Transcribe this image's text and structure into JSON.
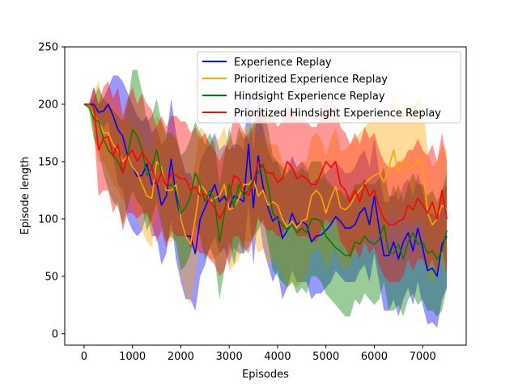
{
  "chart_data": {
    "type": "line",
    "title": "",
    "xlabel": "Episodes",
    "ylabel": "Episode length",
    "xlim": [
      -400,
      7900
    ],
    "ylim": [
      -10,
      250
    ],
    "xticks": [
      0,
      1000,
      2000,
      3000,
      4000,
      5000,
      6000,
      7000
    ],
    "yticks": [
      0,
      50,
      100,
      150,
      200,
      250
    ],
    "grid": false,
    "legend_position": "top-right",
    "x": [
      0,
      100,
      200,
      300,
      400,
      500,
      600,
      700,
      800,
      900,
      1000,
      1100,
      1200,
      1300,
      1400,
      1500,
      1600,
      1700,
      1800,
      1900,
      2000,
      2100,
      2200,
      2300,
      2400,
      2500,
      2600,
      2700,
      2800,
      2900,
      3000,
      3100,
      3200,
      3300,
      3400,
      3500,
      3600,
      3700,
      3800,
      3900,
      4000,
      4100,
      4200,
      4300,
      4400,
      4500,
      4600,
      4700,
      4800,
      4900,
      5000,
      5100,
      5200,
      5300,
      5400,
      5500,
      5600,
      5700,
      5800,
      5900,
      6000,
      6100,
      6200,
      6300,
      6400,
      6500,
      6600,
      6700,
      6800,
      6900,
      7000,
      7100,
      7200,
      7300,
      7400,
      7500
    ],
    "series": [
      {
        "name": "Experience Replay",
        "color": "#0000ff",
        "values": [
          200,
          200,
          200,
          193,
          194,
          200,
          190,
          178,
          172,
          155,
          145,
          137,
          138,
          148,
          130,
          132,
          112,
          120,
          152,
          120,
          100,
          85,
          85,
          70,
          100,
          110,
          120,
          130,
          115,
          120,
          110,
          120,
          118,
          115,
          165,
          110,
          155,
          128,
          110,
          98,
          102,
          83,
          90,
          105,
          95,
          98,
          95,
          80,
          85,
          86,
          90,
          95,
          102,
          98,
          92,
          92,
          95,
          105,
          110,
          95,
          120,
          92,
          68,
          68,
          80,
          65,
          80,
          88,
          72,
          92,
          75,
          55,
          57,
          50,
          78,
          85
        ],
        "upper": [
          200,
          200,
          215,
          200,
          205,
          215,
          225,
          225,
          220,
          210,
          200,
          190,
          185,
          190,
          175,
          180,
          165,
          170,
          205,
          175,
          155,
          140,
          140,
          125,
          150,
          160,
          165,
          175,
          160,
          165,
          160,
          165,
          165,
          160,
          215,
          160,
          205,
          180,
          160,
          150,
          150,
          135,
          140,
          155,
          145,
          150,
          145,
          130,
          135,
          135,
          140,
          145,
          150,
          145,
          140,
          140,
          145,
          155,
          160,
          145,
          170,
          140,
          115,
          115,
          130,
          115,
          130,
          135,
          120,
          140,
          125,
          105,
          105,
          100,
          125,
          130
        ],
        "lower": [
          200,
          200,
          185,
          185,
          180,
          185,
          155,
          130,
          125,
          100,
          90,
          85,
          90,
          105,
          85,
          85,
          60,
          70,
          100,
          65,
          45,
          30,
          30,
          20,
          50,
          60,
          75,
          85,
          70,
          75,
          60,
          75,
          70,
          70,
          115,
          60,
          105,
          75,
          60,
          45,
          55,
          30,
          40,
          55,
          45,
          45,
          45,
          30,
          35,
          35,
          40,
          45,
          55,
          50,
          45,
          45,
          45,
          55,
          60,
          45,
          70,
          45,
          20,
          20,
          30,
          15,
          30,
          40,
          25,
          45,
          25,
          8,
          10,
          5,
          30,
          40
        ]
      },
      {
        "name": "Prioritized Experience Replay",
        "color": "#ffa500",
        "values": [
          200,
          200,
          190,
          185,
          175,
          175,
          165,
          160,
          150,
          155,
          145,
          140,
          130,
          120,
          118,
          150,
          145,
          125,
          125,
          130,
          100,
          85,
          78,
          100,
          130,
          125,
          115,
          118,
          120,
          130,
          108,
          110,
          118,
          130,
          130,
          135,
          120,
          125,
          112,
          115,
          112,
          100,
          93,
          98,
          92,
          98,
          100,
          120,
          125,
          120,
          105,
          118,
          128,
          110,
          108,
          112,
          120,
          125,
          130,
          135,
          138,
          140,
          132,
          145,
          160,
          140,
          152,
          148,
          145,
          152,
          148,
          105,
          95,
          100,
          112,
          108
        ],
        "upper": [
          200,
          200,
          210,
          220,
          200,
          210,
          200,
          195,
          185,
          190,
          180,
          180,
          170,
          160,
          160,
          190,
          185,
          170,
          170,
          175,
          150,
          135,
          130,
          150,
          180,
          175,
          165,
          170,
          170,
          180,
          160,
          160,
          170,
          180,
          180,
          185,
          170,
          175,
          165,
          165,
          165,
          150,
          145,
          150,
          145,
          150,
          150,
          170,
          175,
          170,
          155,
          170,
          180,
          160,
          160,
          165,
          170,
          175,
          180,
          185,
          190,
          190,
          185,
          195,
          210,
          190,
          200,
          200,
          195,
          205,
          200,
          160,
          145,
          150,
          165,
          160
        ],
        "lower": [
          200,
          200,
          170,
          150,
          150,
          140,
          130,
          125,
          115,
          120,
          110,
          100,
          90,
          80,
          75,
          110,
          105,
          80,
          80,
          85,
          50,
          35,
          25,
          50,
          80,
          75,
          65,
          65,
          70,
          80,
          55,
          60,
          65,
          80,
          80,
          85,
          70,
          75,
          60,
          65,
          60,
          50,
          40,
          45,
          40,
          45,
          50,
          70,
          75,
          70,
          55,
          65,
          75,
          60,
          55,
          60,
          70,
          75,
          80,
          85,
          85,
          90,
          80,
          95,
          110,
          90,
          105,
          95,
          95,
          100,
          95,
          50,
          45,
          50,
          60,
          55
        ]
      },
      {
        "name": "Hindsight Experience Replay",
        "color": "#008000",
        "values": [
          200,
          198,
          188,
          185,
          170,
          160,
          155,
          150,
          140,
          155,
          178,
          172,
          160,
          138,
          145,
          160,
          140,
          128,
          130,
          125,
          105,
          110,
          120,
          140,
          130,
          115,
          125,
          115,
          80,
          105,
          130,
          110,
          130,
          120,
          125,
          135,
          140,
          148,
          130,
          105,
          100,
          95,
          90,
          95,
          88,
          92,
          88,
          100,
          100,
          98,
          85,
          80,
          75,
          72,
          68,
          68,
          80,
          78,
          85,
          80,
          78,
          82,
          95,
          70,
          70,
          78,
          65,
          80,
          88,
          78,
          80,
          70,
          72,
          65,
          72,
          90
        ],
        "upper": [
          200,
          200,
          205,
          215,
          205,
          200,
          195,
          190,
          185,
          200,
          230,
          230,
          210,
          185,
          190,
          205,
          185,
          175,
          175,
          170,
          155,
          160,
          170,
          185,
          175,
          165,
          175,
          165,
          130,
          155,
          180,
          160,
          180,
          170,
          175,
          185,
          190,
          195,
          180,
          155,
          150,
          145,
          140,
          145,
          140,
          145,
          140,
          150,
          150,
          150,
          135,
          130,
          125,
          125,
          120,
          120,
          130,
          130,
          135,
          130,
          130,
          135,
          145,
          120,
          120,
          130,
          115,
          130,
          140,
          130,
          130,
          120,
          125,
          115,
          125,
          140
        ],
        "lower": [
          200,
          195,
          170,
          160,
          140,
          125,
          115,
          110,
          95,
          110,
          125,
          115,
          110,
          90,
          100,
          115,
          95,
          80,
          85,
          80,
          55,
          60,
          70,
          95,
          85,
          65,
          75,
          65,
          30,
          55,
          80,
          60,
          80,
          70,
          75,
          85,
          90,
          100,
          80,
          55,
          50,
          45,
          40,
          45,
          35,
          40,
          35,
          50,
          50,
          45,
          35,
          30,
          25,
          20,
          15,
          15,
          30,
          25,
          35,
          30,
          25,
          30,
          45,
          20,
          20,
          25,
          15,
          30,
          35,
          25,
          30,
          20,
          20,
          15,
          20,
          40
        ]
      },
      {
        "name": "Prioritized Hindsight Experience Replay",
        "color": "#ff0000",
        "values": [
          200,
          200,
          198,
          160,
          170,
          172,
          155,
          165,
          140,
          155,
          160,
          150,
          158,
          152,
          145,
          130,
          140,
          128,
          140,
          138,
          135,
          135,
          125,
          128,
          120,
          122,
          115,
          110,
          100,
          108,
          120,
          138,
          135,
          125,
          120,
          132,
          150,
          145,
          140,
          140,
          132,
          135,
          150,
          145,
          135,
          138,
          135,
          130,
          130,
          140,
          150,
          145,
          150,
          130,
          125,
          115,
          125,
          115,
          130,
          120,
          125,
          110,
          100,
          95,
          95,
          98,
          100,
          112,
          108,
          118,
          112,
          105,
          115,
          100,
          125,
          100
        ],
        "upper": [
          200,
          200,
          215,
          200,
          215,
          220,
          205,
          215,
          190,
          205,
          215,
          200,
          210,
          200,
          195,
          180,
          190,
          180,
          190,
          190,
          185,
          185,
          175,
          180,
          170,
          175,
          165,
          160,
          150,
          160,
          170,
          190,
          185,
          175,
          170,
          180,
          200,
          195,
          190,
          190,
          180,
          185,
          200,
          195,
          185,
          190,
          185,
          180,
          180,
          190,
          200,
          195,
          200,
          180,
          175,
          165,
          175,
          165,
          180,
          170,
          175,
          160,
          150,
          145,
          145,
          150,
          150,
          160,
          160,
          170,
          160,
          155,
          165,
          150,
          175,
          150
        ],
        "lower": [
          200,
          200,
          180,
          120,
          125,
          125,
          105,
          115,
          90,
          105,
          105,
          100,
          105,
          105,
          95,
          80,
          90,
          75,
          90,
          85,
          85,
          85,
          75,
          75,
          70,
          70,
          65,
          60,
          50,
          55,
          70,
          85,
          85,
          75,
          70,
          85,
          100,
          95,
          90,
          90,
          85,
          85,
          100,
          95,
          85,
          85,
          85,
          80,
          80,
          90,
          100,
          95,
          100,
          80,
          75,
          65,
          75,
          65,
          80,
          70,
          75,
          60,
          50,
          45,
          45,
          45,
          50,
          65,
          55,
          65,
          65,
          55,
          65,
          50,
          75,
          50
        ]
      }
    ]
  }
}
